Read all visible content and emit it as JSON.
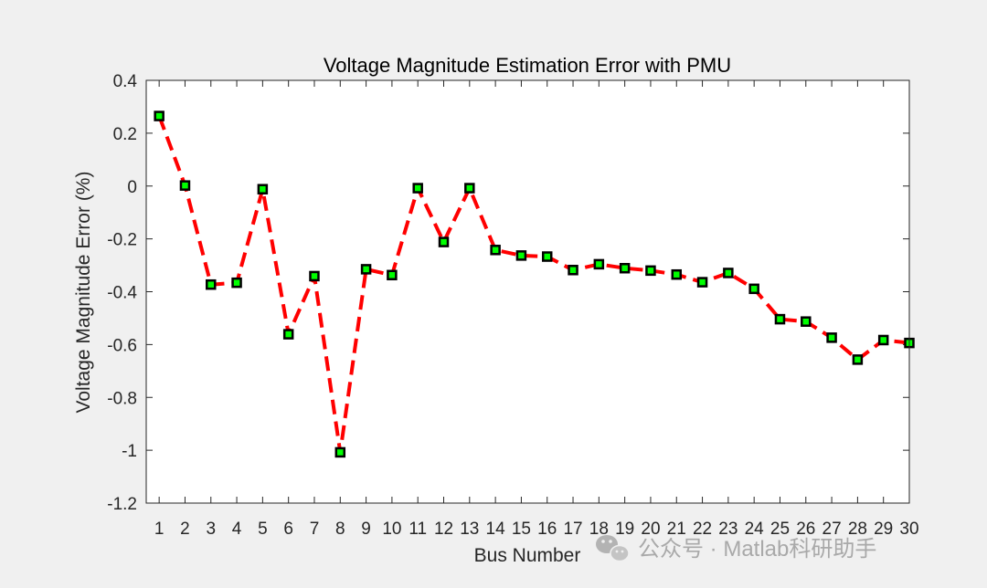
{
  "chart_data": {
    "type": "line",
    "title": "Voltage Magnitude Estimation Error with PMU",
    "xlabel": "Bus Number",
    "ylabel": "Voltage Magnitude Error (%)",
    "xlim": [
      0.5,
      30
    ],
    "ylim": [
      -1.2,
      0.4
    ],
    "x_ticks": [
      1,
      2,
      3,
      4,
      5,
      6,
      7,
      8,
      9,
      10,
      11,
      12,
      13,
      14,
      15,
      16,
      17,
      18,
      19,
      20,
      21,
      22,
      23,
      24,
      25,
      26,
      27,
      28,
      29,
      30
    ],
    "y_ticks": [
      0.4,
      0.2,
      0,
      -0.2,
      -0.4,
      -0.6,
      -0.8,
      -1,
      -1.2
    ],
    "y_tick_labels": [
      "0.4",
      "0.2",
      "0",
      "-0.2",
      "-0.4",
      "-0.6",
      "-0.8",
      "-1",
      "-1.2"
    ],
    "series": [
      {
        "name": "Voltage Magnitude Error",
        "x": [
          1,
          2,
          3,
          4,
          5,
          6,
          7,
          8,
          9,
          10,
          11,
          12,
          13,
          14,
          15,
          16,
          17,
          18,
          19,
          20,
          21,
          22,
          23,
          24,
          25,
          26,
          27,
          28,
          29,
          30
        ],
        "values": [
          0.265,
          0.002,
          -0.373,
          -0.366,
          -0.012,
          -0.561,
          -0.341,
          -1.008,
          -0.315,
          -0.337,
          -0.008,
          -0.212,
          -0.008,
          -0.242,
          -0.263,
          -0.267,
          -0.318,
          -0.296,
          -0.311,
          -0.32,
          -0.335,
          -0.364,
          -0.329,
          -0.389,
          -0.504,
          -0.513,
          -0.574,
          -0.657,
          -0.583,
          -0.594
        ],
        "line_color": "#ff0000",
        "marker_fill": "#00ff00",
        "marker_edge": "#000000"
      }
    ],
    "grid": false,
    "legend": "none"
  },
  "watermark": {
    "icon": "wechat-icon",
    "text": "公众号 · Matlab科研助手"
  },
  "colors": {
    "figure_background": "#f0f0f0",
    "axes_background": "#ffffff",
    "axes_edge": "#262626"
  }
}
